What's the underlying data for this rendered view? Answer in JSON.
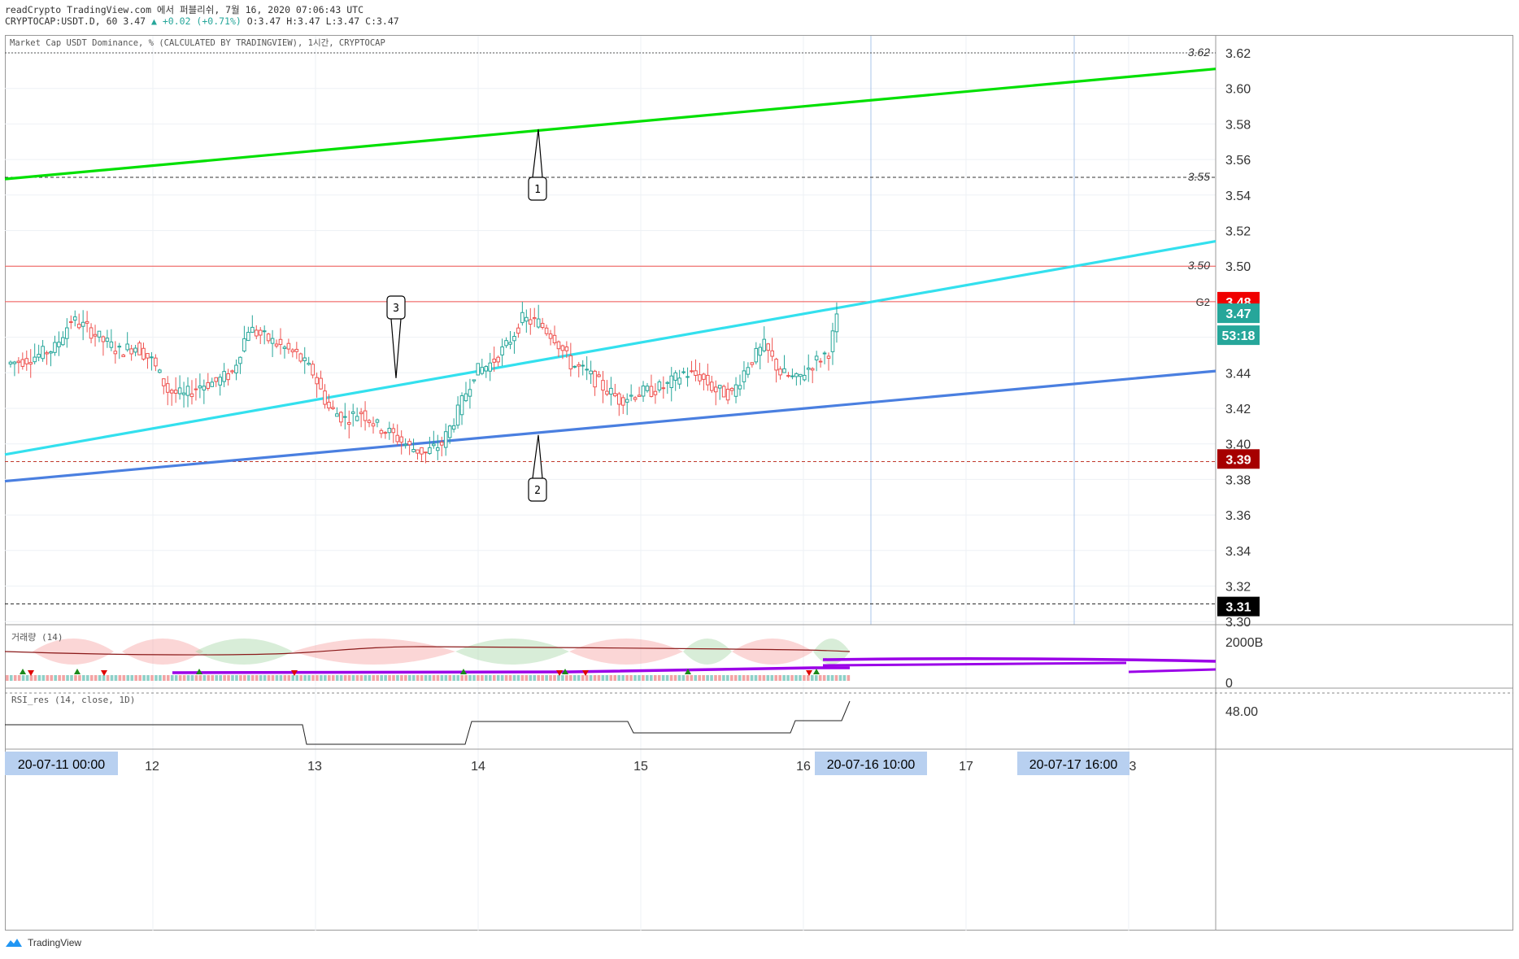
{
  "header": {
    "line1": "readCrypto TradingView.com 에서 퍼블리쉬, 7월 16, 2020 07:06:43 UTC",
    "line2_prefix": "CRYPTOCAP:USDT.D, 60 3.47",
    "line2_change": "▲ +0.02 (+0.71%)",
    "line2_ohlc": "O:3.47 H:3.47 L:3.47 C:3.47"
  },
  "indicator_title": "Market Cap USDT Dominance, % (CALCULATED BY TRADINGVIEW), 1시간, CRYPTOCAP",
  "volume_title": "거래량 (14)",
  "rsi_title": "RSI_res (14, close, 1D)",
  "footer": {
    "brand": "TradingView"
  },
  "colors": {
    "up": "#26a69a",
    "down": "#ef5350",
    "green_line": "#00e000",
    "cyan_line": "#33e0ee",
    "blue_line": "#4a7fe0",
    "purple_line": "#9b00e8",
    "price_tag": "#26a69a",
    "g2_tag": "#f00000",
    "support_tag": "#a60000",
    "black_tag": "#000000",
    "time_tag": "#b8d0f0"
  },
  "price_axis": {
    "ticks": [
      "3.62",
      "3.60",
      "3.58",
      "3.56",
      "3.54",
      "3.52",
      "3.50",
      "3.48",
      "3.46",
      "3.44",
      "3.42",
      "3.40",
      "3.38",
      "3.36",
      "3.34",
      "3.32",
      "3.30"
    ],
    "tags": {
      "last": "3.47",
      "countdown": "53:18",
      "g2": "3.48",
      "g2_label": "G2",
      "support": "3.39",
      "bottom": "3.31"
    },
    "level_labels": [
      "3.62",
      "3.55",
      "3.50"
    ]
  },
  "time_axis": {
    "labels": [
      "12",
      "13",
      "14",
      "15",
      "16",
      "17",
      "3"
    ],
    "highlight": [
      "20-07-11   00:00",
      "20-07-16   10:00",
      "20-07-17   16:00"
    ]
  },
  "volume_axis": {
    "ticks": [
      "2000B",
      "0"
    ]
  },
  "rsi_axis": {
    "ticks": [
      "48.00"
    ]
  },
  "callouts": [
    "1",
    "2",
    "3"
  ],
  "chart_data": {
    "type": "candlestick",
    "symbol": "CRYPTOCAP:USDT.D",
    "interval": "60",
    "ylim": [
      3.3,
      3.63
    ],
    "horizontal_levels": [
      3.62,
      3.55,
      3.5,
      3.48,
      3.39,
      3.31
    ],
    "trendlines": [
      {
        "color": "green",
        "from": [
          "20-07-11 00:00",
          3.549
        ],
        "to": [
          "20-07-18 09:00",
          3.611
        ]
      },
      {
        "color": "cyan",
        "from": [
          "20-07-11 00:00",
          3.394
        ],
        "to": [
          "20-07-18 09:00",
          3.514
        ]
      },
      {
        "color": "blue",
        "from": [
          "20-07-11 00:00",
          3.379
        ],
        "to": [
          "20-07-18 09:00",
          3.441
        ]
      }
    ],
    "close_path": [
      [
        0,
        3.445
      ],
      [
        4,
        3.447
      ],
      [
        8,
        3.45
      ],
      [
        12,
        3.454
      ],
      [
        16,
        3.47
      ],
      [
        20,
        3.465
      ],
      [
        24,
        3.458
      ],
      [
        28,
        3.452
      ],
      [
        32,
        3.455
      ],
      [
        36,
        3.447
      ],
      [
        40,
        3.43
      ],
      [
        44,
        3.427
      ],
      [
        48,
        3.433
      ],
      [
        52,
        3.435
      ],
      [
        56,
        3.44
      ],
      [
        60,
        3.465
      ],
      [
        64,
        3.46
      ],
      [
        68,
        3.455
      ],
      [
        72,
        3.45
      ],
      [
        76,
        3.44
      ],
      [
        80,
        3.42
      ],
      [
        84,
        3.414
      ],
      [
        88,
        3.418
      ],
      [
        92,
        3.41
      ],
      [
        96,
        3.405
      ],
      [
        100,
        3.398
      ],
      [
        104,
        3.395
      ],
      [
        108,
        3.4
      ],
      [
        112,
        3.418
      ],
      [
        116,
        3.44
      ],
      [
        120,
        3.445
      ],
      [
        124,
        3.455
      ],
      [
        128,
        3.47
      ],
      [
        132,
        3.468
      ],
      [
        136,
        3.46
      ],
      [
        140,
        3.445
      ],
      [
        144,
        3.44
      ],
      [
        148,
        3.432
      ],
      [
        152,
        3.425
      ],
      [
        156,
        3.428
      ],
      [
        160,
        3.43
      ],
      [
        164,
        3.433
      ],
      [
        168,
        3.44
      ],
      [
        172,
        3.438
      ],
      [
        176,
        3.43
      ],
      [
        180,
        3.428
      ],
      [
        184,
        3.445
      ],
      [
        188,
        3.455
      ],
      [
        192,
        3.44
      ],
      [
        196,
        3.436
      ],
      [
        200,
        3.445
      ],
      [
        204,
        3.452
      ],
      [
        206,
        3.47
      ]
    ],
    "current": {
      "open": 3.47,
      "high": 3.47,
      "low": 3.47,
      "close": 3.47,
      "change": 0.02,
      "change_pct": 0.71
    }
  }
}
